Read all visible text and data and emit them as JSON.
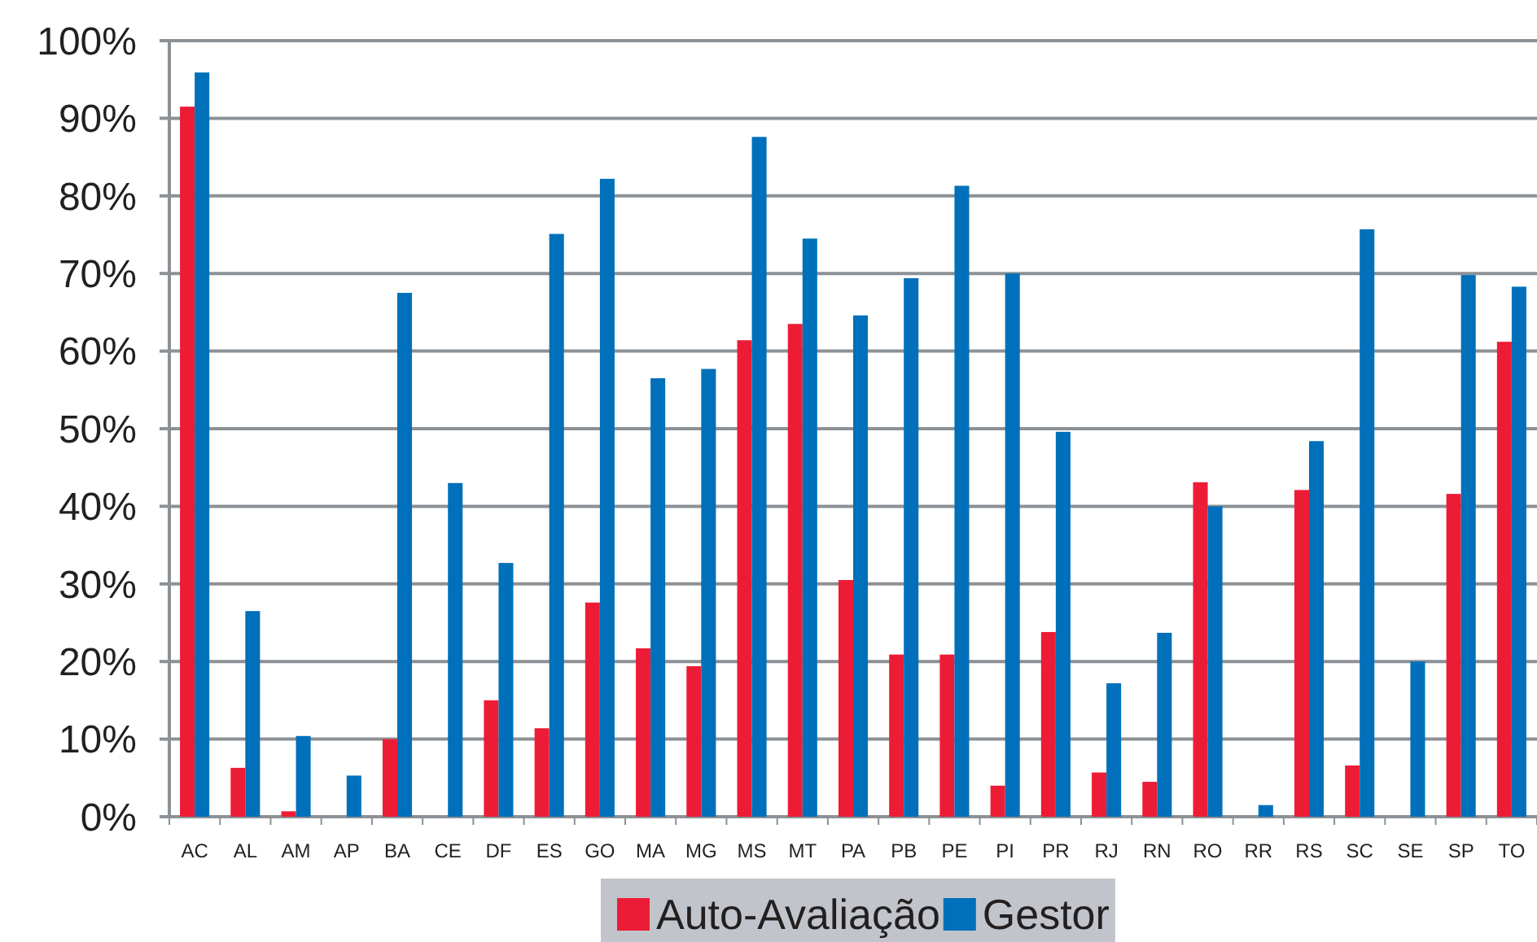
{
  "chart_data": {
    "type": "bar",
    "categories": [
      "AC",
      "AL",
      "AM",
      "AP",
      "BA",
      "CE",
      "DF",
      "ES",
      "GO",
      "MA",
      "MG",
      "MS",
      "MT",
      "PA",
      "PB",
      "PE",
      "PI",
      "PR",
      "RJ",
      "RN",
      "RO",
      "RR",
      "RS",
      "SC",
      "SE",
      "SP",
      "TO"
    ],
    "series": [
      {
        "name": "Auto-Avaliação",
        "color": "#ed1c36",
        "values": [
          91.5,
          6.3,
          0.7,
          0,
          10,
          0,
          15,
          11.4,
          27.6,
          21.7,
          19.4,
          61.4,
          63.5,
          30.5,
          20.9,
          20.9,
          4,
          23.8,
          5.7,
          4.5,
          43.1,
          0,
          42.1,
          6.6,
          0,
          41.6,
          61.2
        ]
      },
      {
        "name": "Gestor",
        "color": "#0070ba",
        "values": [
          95.9,
          26.5,
          10.4,
          5.3,
          67.5,
          43,
          32.7,
          75.1,
          82.2,
          56.5,
          57.7,
          87.6,
          74.5,
          64.6,
          69.4,
          81.3,
          70,
          49.6,
          17.2,
          23.7,
          40,
          1.5,
          48.4,
          75.7,
          20,
          69.8,
          68.3
        ]
      }
    ],
    "ylim": [
      0,
      100
    ],
    "yticks": [
      {
        "value": 0,
        "label": "0%"
      },
      {
        "value": 10,
        "label": "10%"
      },
      {
        "value": 20,
        "label": "20%"
      },
      {
        "value": 30,
        "label": "30%"
      },
      {
        "value": 40,
        "label": "40%"
      },
      {
        "value": 50,
        "label": "50%"
      },
      {
        "value": 60,
        "label": "60%"
      },
      {
        "value": 70,
        "label": "70%"
      },
      {
        "value": 80,
        "label": "80%"
      },
      {
        "value": 90,
        "label": "90%"
      },
      {
        "value": 100,
        "label": "100%"
      }
    ],
    "grid": "y",
    "legend": "bottom"
  }
}
